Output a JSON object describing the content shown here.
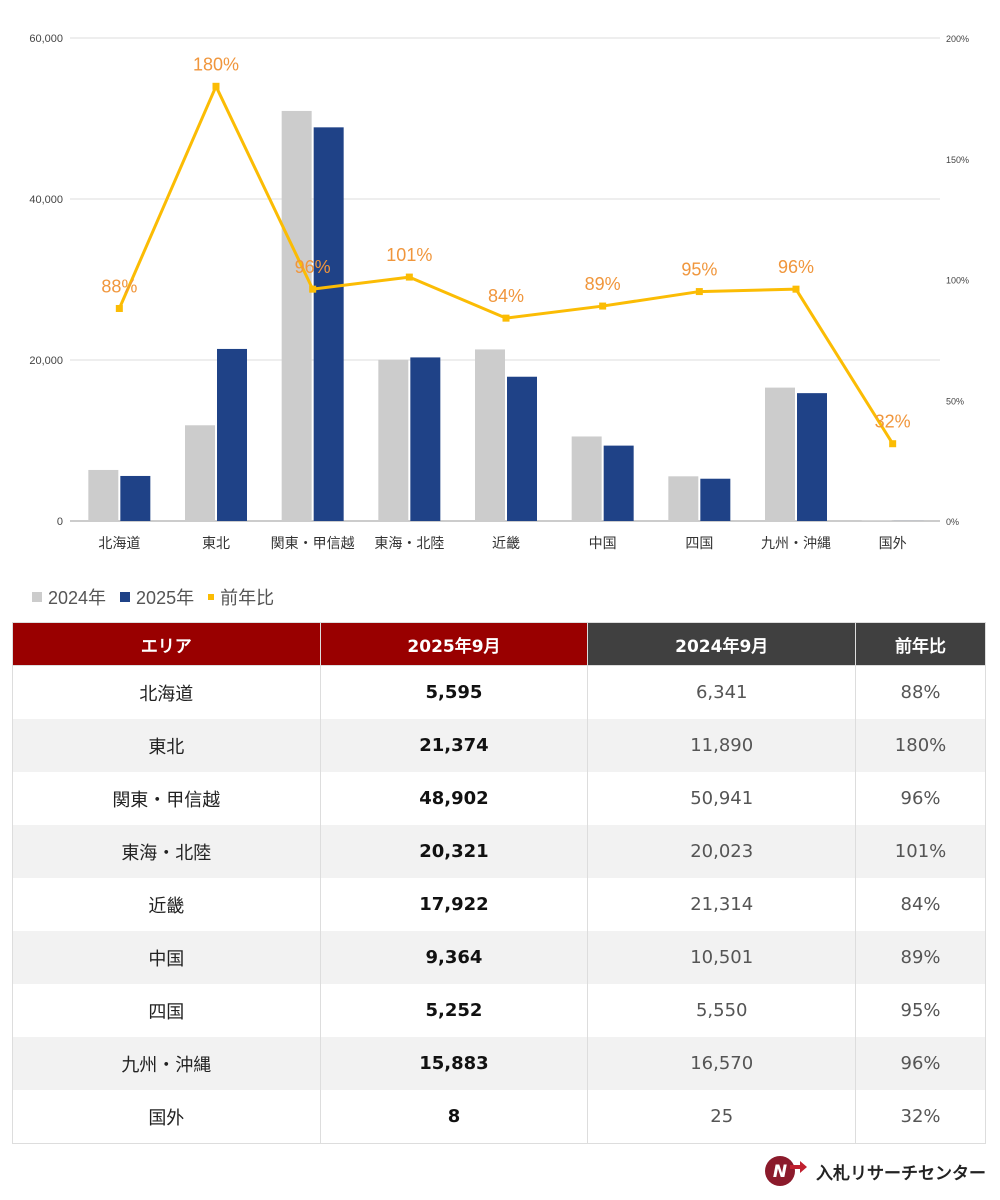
{
  "chart_data": {
    "type": "bar+line",
    "categories": [
      "北海道",
      "東北",
      "関東・甲信越",
      "東海・北陸",
      "近畿",
      "中国",
      "四国",
      "九州・沖縄",
      "国外"
    ],
    "series": [
      {
        "name": "2024年",
        "type": "bar",
        "color": "#cccccc",
        "values": [
          6341,
          11890,
          50941,
          20023,
          21314,
          10501,
          5550,
          16570,
          25
        ]
      },
      {
        "name": "2025年",
        "type": "bar",
        "color": "#1f4287",
        "values": [
          5595,
          21374,
          48902,
          20321,
          17922,
          9364,
          5252,
          15883,
          8
        ]
      },
      {
        "name": "前年比",
        "type": "line",
        "axis": "right",
        "color": "#fbbc04",
        "values": [
          88,
          180,
          96,
          101,
          84,
          89,
          95,
          96,
          32
        ],
        "labels": [
          "88%",
          "180%",
          "96%",
          "101%",
          "84%",
          "89%",
          "95%",
          "96%",
          "32%"
        ]
      }
    ],
    "y_left": {
      "range": [
        0,
        60000
      ],
      "ticks": [
        "0",
        "20,000",
        "40,000",
        "60,000"
      ],
      "tick_values": [
        0,
        20000,
        40000,
        60000
      ]
    },
    "y_right": {
      "range": [
        0,
        200
      ],
      "ticks": [
        "0%",
        "50%",
        "100%",
        "150%",
        "200%"
      ],
      "tick_values": [
        0,
        50,
        100,
        150,
        200
      ]
    },
    "grid": true,
    "legend_position": "bottom-left"
  },
  "legend": [
    {
      "label": "2024年",
      "color": "#cccccc"
    },
    {
      "label": "2025年",
      "color": "#1f4287"
    },
    {
      "label": "前年比",
      "color": "#fbbc04"
    }
  ],
  "table": {
    "headers": [
      "エリア",
      "2025年9月",
      "2024年9月",
      "前年比"
    ],
    "rows": [
      [
        "北海道",
        "5,595",
        "6,341",
        "88%"
      ],
      [
        "東北",
        "21,374",
        "11,890",
        "180%"
      ],
      [
        "関東・甲信越",
        "48,902",
        "50,941",
        "96%"
      ],
      [
        "東海・北陸",
        "20,321",
        "20,023",
        "101%"
      ],
      [
        "近畿",
        "17,922",
        "21,314",
        "84%"
      ],
      [
        "中国",
        "9,364",
        "10,501",
        "89%"
      ],
      [
        "四国",
        "5,252",
        "5,550",
        "95%"
      ],
      [
        "九州・沖縄",
        "15,883",
        "16,570",
        "96%"
      ],
      [
        "国外",
        "8",
        "25",
        "32%"
      ]
    ]
  },
  "logo": {
    "text": "入札リサーチセンター",
    "mark": "N"
  }
}
